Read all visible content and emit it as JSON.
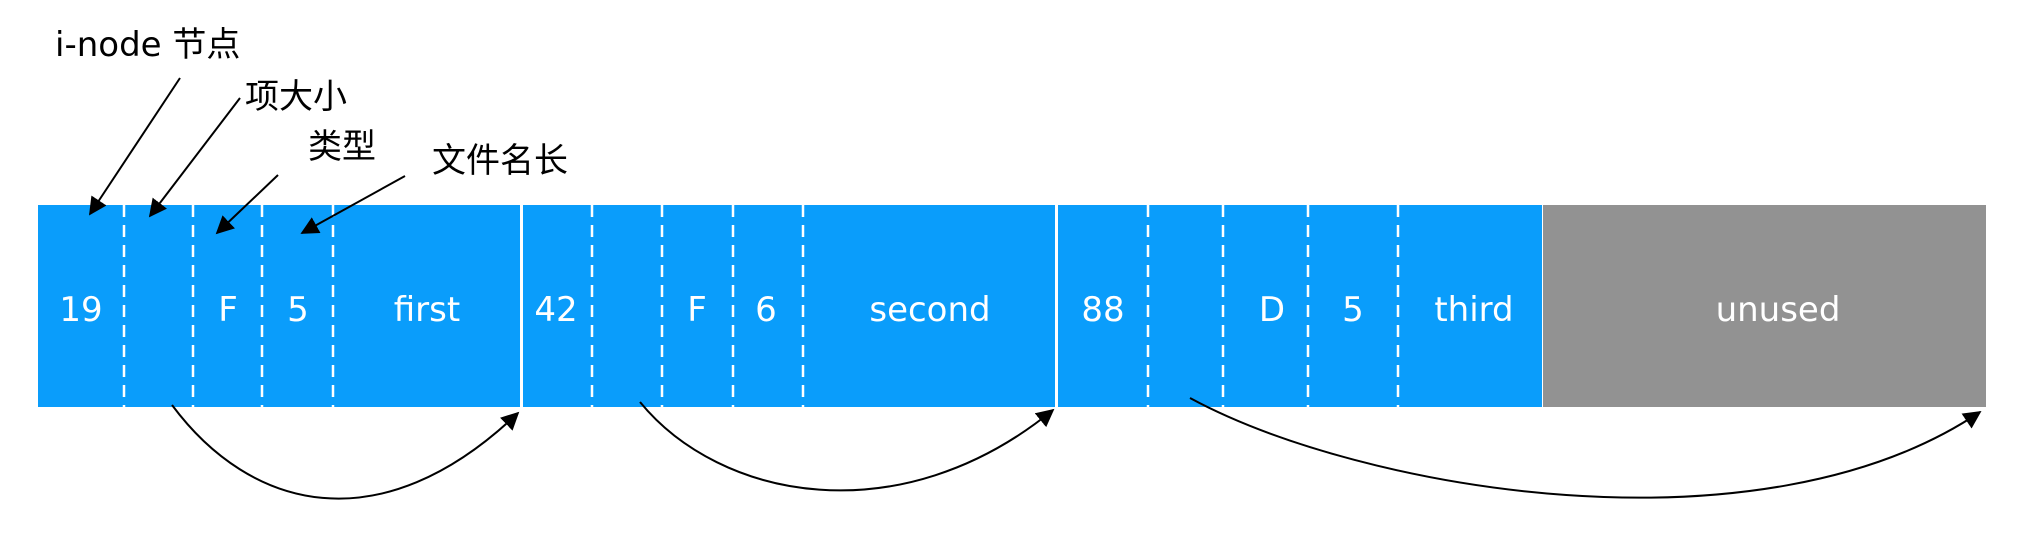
{
  "labels": {
    "inode": "i-node 节点",
    "record_size": "项大小",
    "type": "类型",
    "name_length": "文件名长"
  },
  "entries": [
    {
      "inode": "19",
      "size": "",
      "type": "F",
      "name_len": "5",
      "name": "first"
    },
    {
      "inode": "42",
      "size": "",
      "type": "F",
      "name_len": "6",
      "name": "second"
    },
    {
      "inode": "88",
      "size": "",
      "type": "D",
      "name_len": "5",
      "name": "third"
    }
  ],
  "unused_label": "unused",
  "colors": {
    "entry_fill": "#0a9dfb",
    "unused_fill": "#929292",
    "cell_text": "#ffffff",
    "label_text": "#000000",
    "arrow": "#000000"
  }
}
